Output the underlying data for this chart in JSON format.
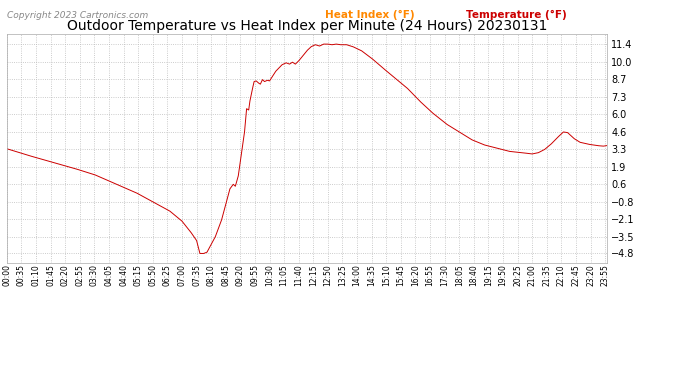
{
  "title": "Outdoor Temperature vs Heat Index per Minute (24 Hours) 20230131",
  "copyright": "Copyright 2023 Cartronics.com",
  "legend_heat": "Heat Index (°F)",
  "legend_temp": "Temperature (°F)",
  "legend_heat_color": "#ff8800",
  "legend_temp_color": "#cc0000",
  "line_color": "#cc0000",
  "background_color": "#ffffff",
  "plot_bg_color": "#ffffff",
  "yticks": [
    11.4,
    10.0,
    8.7,
    7.3,
    6.0,
    4.6,
    3.3,
    1.9,
    0.6,
    -0.8,
    -2.1,
    -3.5,
    -4.8
  ],
  "ylim": [
    -5.5,
    12.2
  ],
  "grid_color": "#bbbbbb",
  "title_color": "#000000",
  "title_fontsize": 10,
  "xtick_labels": [
    "00:00",
    "00:35",
    "01:10",
    "01:45",
    "02:20",
    "02:55",
    "03:30",
    "04:05",
    "04:40",
    "05:15",
    "05:50",
    "06:25",
    "07:00",
    "07:35",
    "08:10",
    "08:45",
    "09:20",
    "09:55",
    "10:30",
    "11:05",
    "11:40",
    "12:15",
    "12:50",
    "13:25",
    "14:00",
    "14:35",
    "15:10",
    "15:45",
    "16:20",
    "16:55",
    "17:30",
    "18:05",
    "18:40",
    "19:15",
    "19:50",
    "20:25",
    "21:00",
    "21:35",
    "22:10",
    "22:45",
    "23:20",
    "23:55"
  ],
  "key_points": [
    [
      0,
      3.3
    ],
    [
      50,
      2.8
    ],
    [
      105,
      2.3
    ],
    [
      160,
      1.8
    ],
    [
      210,
      1.3
    ],
    [
      260,
      0.6
    ],
    [
      310,
      -0.1
    ],
    [
      355,
      -0.9
    ],
    [
      390,
      -1.5
    ],
    [
      420,
      -2.3
    ],
    [
      440,
      -3.1
    ],
    [
      455,
      -3.8
    ],
    [
      463,
      -4.8
    ],
    [
      472,
      -4.8
    ],
    [
      480,
      -4.7
    ],
    [
      500,
      -3.5
    ],
    [
      515,
      -2.2
    ],
    [
      525,
      -1.0
    ],
    [
      535,
      0.2
    ],
    [
      543,
      0.55
    ],
    [
      548,
      0.4
    ],
    [
      555,
      1.2
    ],
    [
      562,
      2.8
    ],
    [
      570,
      4.6
    ],
    [
      575,
      6.4
    ],
    [
      580,
      6.3
    ],
    [
      583,
      7.0
    ],
    [
      588,
      7.8
    ],
    [
      593,
      8.5
    ],
    [
      598,
      8.55
    ],
    [
      603,
      8.4
    ],
    [
      608,
      8.3
    ],
    [
      613,
      8.65
    ],
    [
      618,
      8.5
    ],
    [
      625,
      8.6
    ],
    [
      630,
      8.55
    ],
    [
      645,
      9.3
    ],
    [
      660,
      9.8
    ],
    [
      670,
      9.95
    ],
    [
      678,
      9.85
    ],
    [
      685,
      10.0
    ],
    [
      692,
      9.85
    ],
    [
      700,
      10.1
    ],
    [
      710,
      10.5
    ],
    [
      720,
      10.9
    ],
    [
      730,
      11.2
    ],
    [
      740,
      11.35
    ],
    [
      750,
      11.25
    ],
    [
      760,
      11.4
    ],
    [
      770,
      11.4
    ],
    [
      780,
      11.35
    ],
    [
      790,
      11.4
    ],
    [
      800,
      11.35
    ],
    [
      815,
      11.35
    ],
    [
      830,
      11.2
    ],
    [
      850,
      10.9
    ],
    [
      875,
      10.3
    ],
    [
      900,
      9.6
    ],
    [
      930,
      8.8
    ],
    [
      960,
      8.0
    ],
    [
      990,
      7.0
    ],
    [
      1020,
      6.1
    ],
    [
      1055,
      5.2
    ],
    [
      1085,
      4.6
    ],
    [
      1115,
      4.0
    ],
    [
      1145,
      3.6
    ],
    [
      1175,
      3.35
    ],
    [
      1205,
      3.1
    ],
    [
      1235,
      3.0
    ],
    [
      1260,
      2.9
    ],
    [
      1275,
      3.0
    ],
    [
      1290,
      3.25
    ],
    [
      1305,
      3.65
    ],
    [
      1320,
      4.15
    ],
    [
      1335,
      4.6
    ],
    [
      1345,
      4.55
    ],
    [
      1360,
      4.1
    ],
    [
      1375,
      3.8
    ],
    [
      1395,
      3.65
    ],
    [
      1415,
      3.55
    ],
    [
      1430,
      3.5
    ],
    [
      1440,
      3.55
    ]
  ]
}
